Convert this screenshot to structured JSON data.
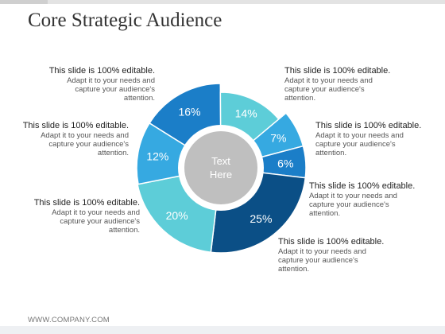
{
  "title": "Core Strategic Audience",
  "center_text": "Text Here",
  "footer": "WWW.COMPANY.COM",
  "chart_data": {
    "type": "pie",
    "variant": "donut",
    "slices": [
      {
        "label": "16%",
        "value": 16,
        "color": "#1b7ec8"
      },
      {
        "label": "14%",
        "value": 14,
        "color": "#5dcdd8"
      },
      {
        "label": "7%",
        "value": 7,
        "color": "#36a9e1"
      },
      {
        "label": "6%",
        "value": 6,
        "color": "#1b7ec8"
      },
      {
        "label": "25%",
        "value": 25,
        "color": "#0b4f86"
      },
      {
        "label": "20%",
        "value": 20,
        "color": "#5dcdd8"
      },
      {
        "label": "12%",
        "value": 12,
        "color": "#36a9e1"
      }
    ]
  },
  "notes": [
    {
      "heading": "This slide is 100% editable.",
      "body": "Adapt it to your needs and capture your audience's attention."
    },
    {
      "heading": "This slide is 100% editable.",
      "body": "Adapt it to your needs and capture your audience's attention."
    },
    {
      "heading": "This slide is 100% editable.",
      "body": "Adapt it to your needs and capture your audience's attention."
    },
    {
      "heading": "This slide is 100% editable.",
      "body": "Adapt it to your needs and capture your audience's attention."
    },
    {
      "heading": "This slide is 100% editable.",
      "body": "Adapt it to your needs and capture your audience's attention."
    },
    {
      "heading": "This slide is 100% editable.",
      "body": "Adapt it to your needs and capture your audience's attention."
    },
    {
      "heading": "This slide is 100% editable.",
      "body": "Adapt it to your needs and capture your audience's attention."
    }
  ]
}
